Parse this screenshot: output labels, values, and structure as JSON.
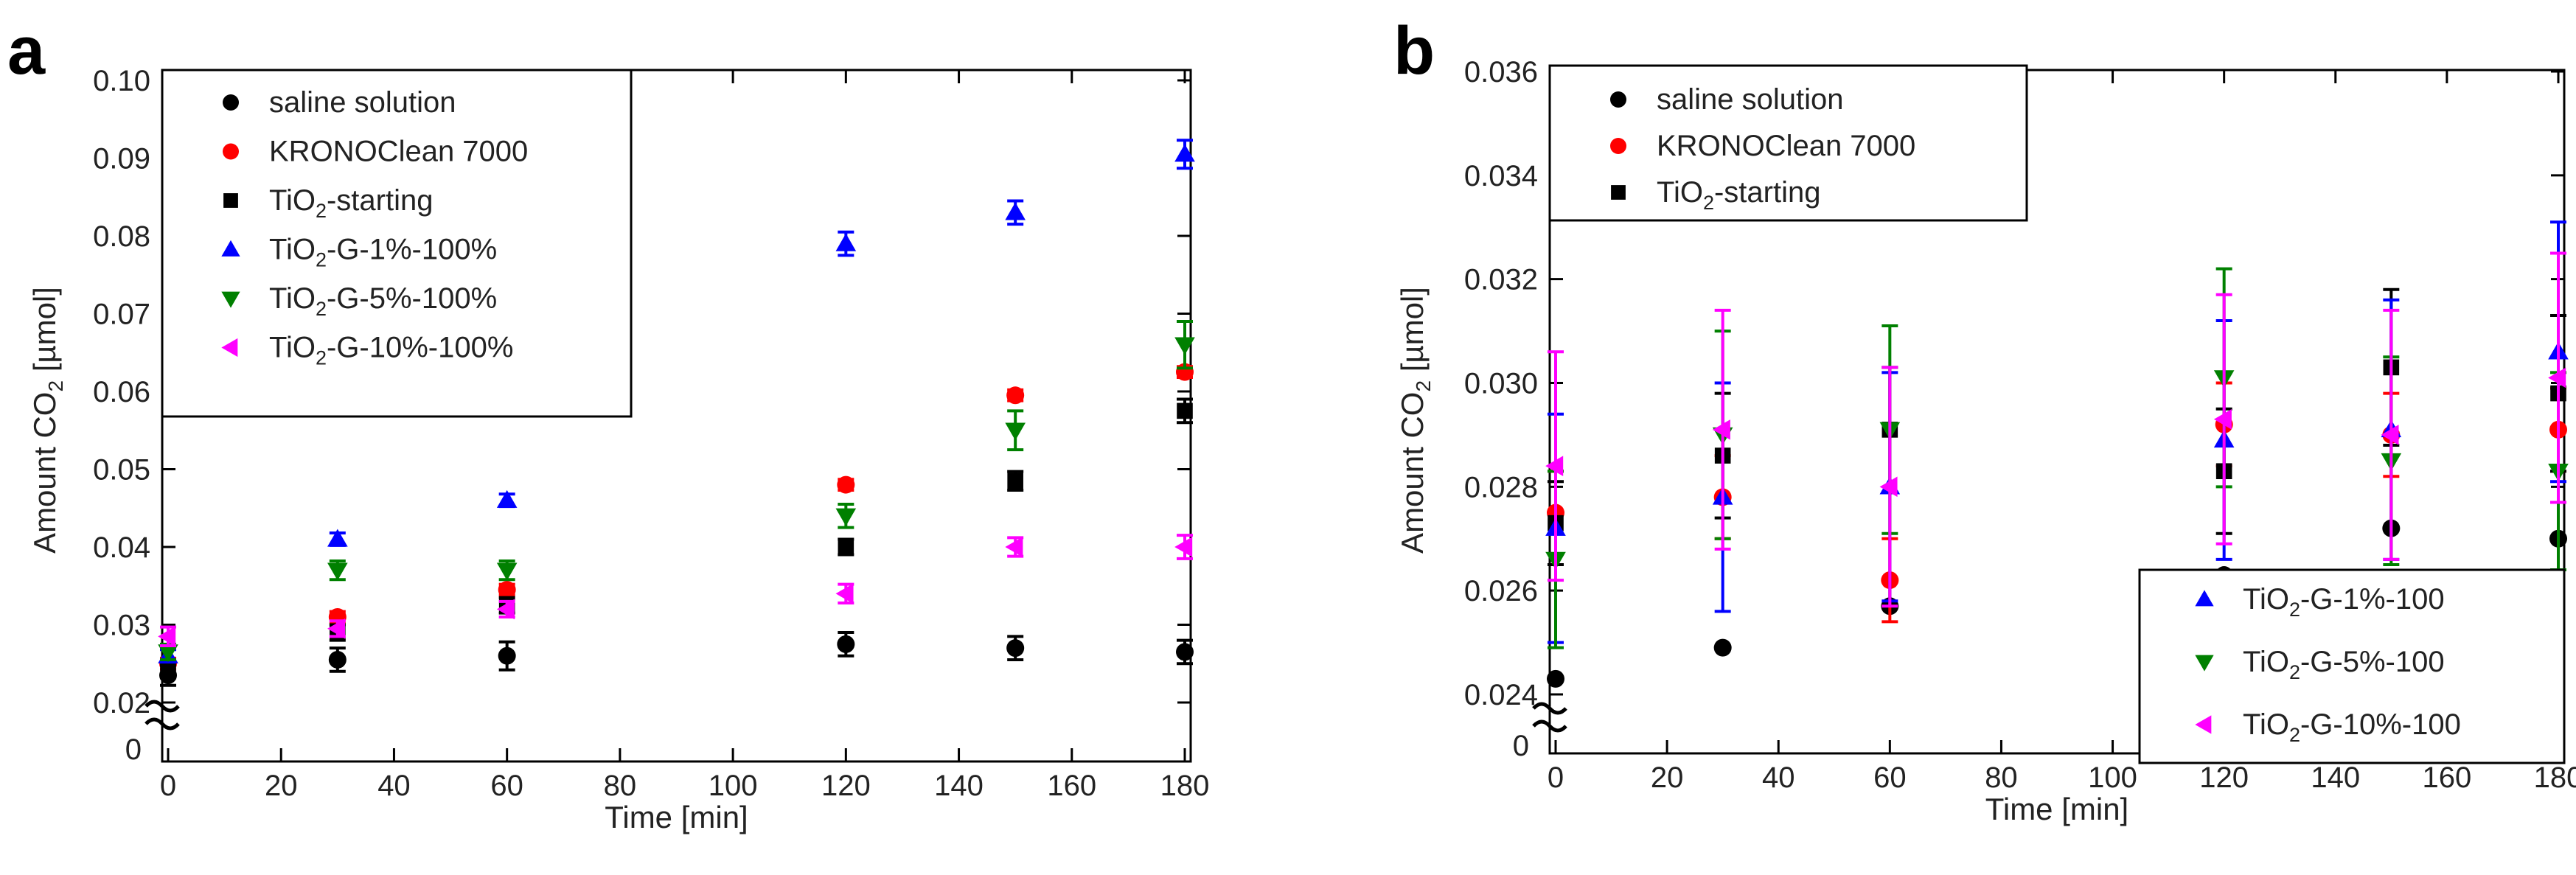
{
  "chart_data": [
    {
      "panel_label": "a",
      "type": "scatter",
      "xlabel": "Time [min]",
      "ylabel_main": "Amount CO",
      "ylabel_sub": "2",
      "ylabel_unit": " [µmol]",
      "xlim": [
        0,
        180
      ],
      "ylim": [
        0.02,
        0.1
      ],
      "xticks": [
        0,
        20,
        40,
        60,
        80,
        100,
        120,
        140,
        160,
        180
      ],
      "xtick_labels": [
        "0",
        "20",
        "40",
        "60",
        "80",
        "100",
        "120",
        "140",
        "160",
        "180"
      ],
      "yticks": [
        0.02,
        0.03,
        0.04,
        0.05,
        0.06,
        0.07,
        0.08,
        0.09,
        0.1
      ],
      "ytick_labels": [
        "0.02",
        "0.03",
        "0.04",
        "0.05",
        "0.06",
        "0.07",
        "0.08",
        "0.09",
        "0.10"
      ],
      "axis_break_label": "0",
      "x": [
        0,
        30,
        60,
        120,
        150,
        180
      ],
      "legend_position": "top-left",
      "series": [
        {
          "name": "saline solution",
          "label_main": "saline solution",
          "label_sub": "",
          "label_rest": "",
          "marker": "circle",
          "color": "#000000",
          "values": [
            0.0235,
            0.0255,
            0.026,
            0.0275,
            0.027,
            0.0265
          ],
          "errors": [
            0.0013,
            0.0015,
            0.0018,
            0.0015,
            0.0015,
            0.0015
          ]
        },
        {
          "name": "KRONOClean 7000",
          "label_main": "KRONOClean 7000",
          "label_sub": "",
          "label_rest": "",
          "marker": "circle",
          "color": "#ff0000",
          "values": [
            0.025,
            0.031,
            0.0345,
            0.048,
            0.0595,
            0.0625
          ],
          "errors": [
            0.0007,
            0.0007,
            0.0007,
            0.0007,
            0.0007,
            0.0007
          ]
        },
        {
          "name": "TiO2-starting",
          "label_main": "TiO",
          "label_sub": "2",
          "label_rest": "-starting",
          "marker": "square",
          "color": "#000000",
          "values": [
            0.024,
            0.029,
            0.0325,
            0.04,
            0.0485,
            0.0575
          ],
          "errors": [
            0.0008,
            0.001,
            0.001,
            0.001,
            0.0012,
            0.0015
          ]
        },
        {
          "name": "TiO2-G-1%-100%",
          "label_main": "TiO",
          "label_sub": "2",
          "label_rest": "-G-1%-100%",
          "marker": "triangle-up",
          "color": "#0000ff",
          "values": [
            0.026,
            0.041,
            0.046,
            0.079,
            0.083,
            0.0905
          ],
          "errors": [
            0.0008,
            0.0008,
            0.0008,
            0.0015,
            0.0015,
            0.0018
          ]
        },
        {
          "name": "TiO2-G-5%-100%",
          "label_main": "TiO",
          "label_sub": "2",
          "label_rest": "-G-5%-100%",
          "marker": "triangle-down",
          "color": "#008000",
          "values": [
            0.0265,
            0.037,
            0.037,
            0.044,
            0.055,
            0.066
          ],
          "errors": [
            0.001,
            0.0012,
            0.0012,
            0.0015,
            0.0025,
            0.003
          ]
        },
        {
          "name": "TiO2-G-10%-100%",
          "label_main": "TiO",
          "label_sub": "2",
          "label_rest": "-G-10%-100%",
          "marker": "triangle-left",
          "color": "#ff00ff",
          "values": [
            0.0285,
            0.0295,
            0.032,
            0.034,
            0.04,
            0.04
          ],
          "errors": [
            0.0012,
            0.001,
            0.001,
            0.0012,
            0.0012,
            0.0015
          ]
        }
      ]
    },
    {
      "panel_label": "b",
      "type": "scatter",
      "xlabel": "Time [min]",
      "ylabel_main": "Amount CO",
      "ylabel_sub": "2",
      "ylabel_unit": " [µmol]",
      "xlim": [
        0,
        180
      ],
      "ylim": [
        0.024,
        0.036
      ],
      "xticks": [
        0,
        20,
        40,
        60,
        80,
        100,
        120,
        140,
        160,
        180
      ],
      "xtick_labels": [
        "0",
        "20",
        "40",
        "60",
        "80",
        "100",
        "120",
        "140",
        "160",
        "180"
      ],
      "yticks": [
        0.024,
        0.026,
        0.028,
        0.03,
        0.032,
        0.034,
        0.036
      ],
      "ytick_labels": [
        "0.024",
        "0.026",
        "0.028",
        "0.030",
        "0.032",
        "0.034",
        "0.036"
      ],
      "axis_break_label": "0",
      "x": [
        0,
        30,
        60,
        120,
        150,
        180
      ],
      "legend_position": "top-left and bottom-right",
      "series": [
        {
          "name": "saline solution",
          "label_main": "saline solution",
          "label_sub": "",
          "label_rest": "",
          "legend_group": "top",
          "marker": "circle",
          "color": "#000000",
          "values": [
            0.0243,
            0.0249,
            0.0257,
            0.0263,
            0.0272,
            0.027
          ],
          "errors": [
            0,
            0,
            0,
            0,
            0,
            0
          ]
        },
        {
          "name": "KRONOClean 7000",
          "label_main": "KRONOClean 7000",
          "label_sub": "",
          "label_rest": "",
          "legend_group": "top",
          "marker": "circle",
          "color": "#ff0000",
          "values": [
            0.0275,
            0.0278,
            0.0262,
            0.0292,
            0.029,
            0.0291
          ],
          "errors": [
            0.0008,
            0.0008,
            0.0008,
            0.0008,
            0.0008,
            0.0008
          ]
        },
        {
          "name": "TiO2-starting",
          "label_main": "TiO",
          "label_sub": "2",
          "label_rest": "-starting",
          "legend_group": "top",
          "marker": "square",
          "color": "#000000",
          "values": [
            0.0273,
            0.0286,
            0.0291,
            0.0283,
            0.0303,
            0.0298
          ],
          "errors": [
            0.0008,
            0.0012,
            0.0012,
            0.0012,
            0.0015,
            0.0015
          ]
        },
        {
          "name": "TiO2-G-1%-100",
          "label_main": "TiO",
          "label_sub": "2",
          "label_rest": "-G-1%-100",
          "legend_group": "bottom",
          "marker": "triangle-up",
          "color": "#0000ff",
          "values": [
            0.0272,
            0.0278,
            0.028,
            0.0289,
            0.0291,
            0.0306
          ],
          "errors": [
            0.0022,
            0.0022,
            0.0022,
            0.0023,
            0.0025,
            0.0025
          ]
        },
        {
          "name": "TiO2-G-5%-100",
          "label_main": "TiO",
          "label_sub": "2",
          "label_rest": "-G-5%-100",
          "legend_group": "bottom",
          "marker": "triangle-down",
          "color": "#008000",
          "values": [
            0.0266,
            0.029,
            0.0291,
            0.0301,
            0.0285,
            0.0283
          ],
          "errors": [
            0.0017,
            0.002,
            0.002,
            0.0021,
            0.002,
            0.0019
          ]
        },
        {
          "name": "TiO2-G-10%-100",
          "label_main": "TiO",
          "label_sub": "2",
          "label_rest": "-G-10%-100",
          "legend_group": "bottom",
          "marker": "triangle-left",
          "color": "#ff00ff",
          "values": [
            0.0284,
            0.0291,
            0.028,
            0.0293,
            0.029,
            0.0301
          ],
          "errors": [
            0.0022,
            0.0023,
            0.0023,
            0.0024,
            0.0024,
            0.0024
          ]
        }
      ]
    }
  ]
}
